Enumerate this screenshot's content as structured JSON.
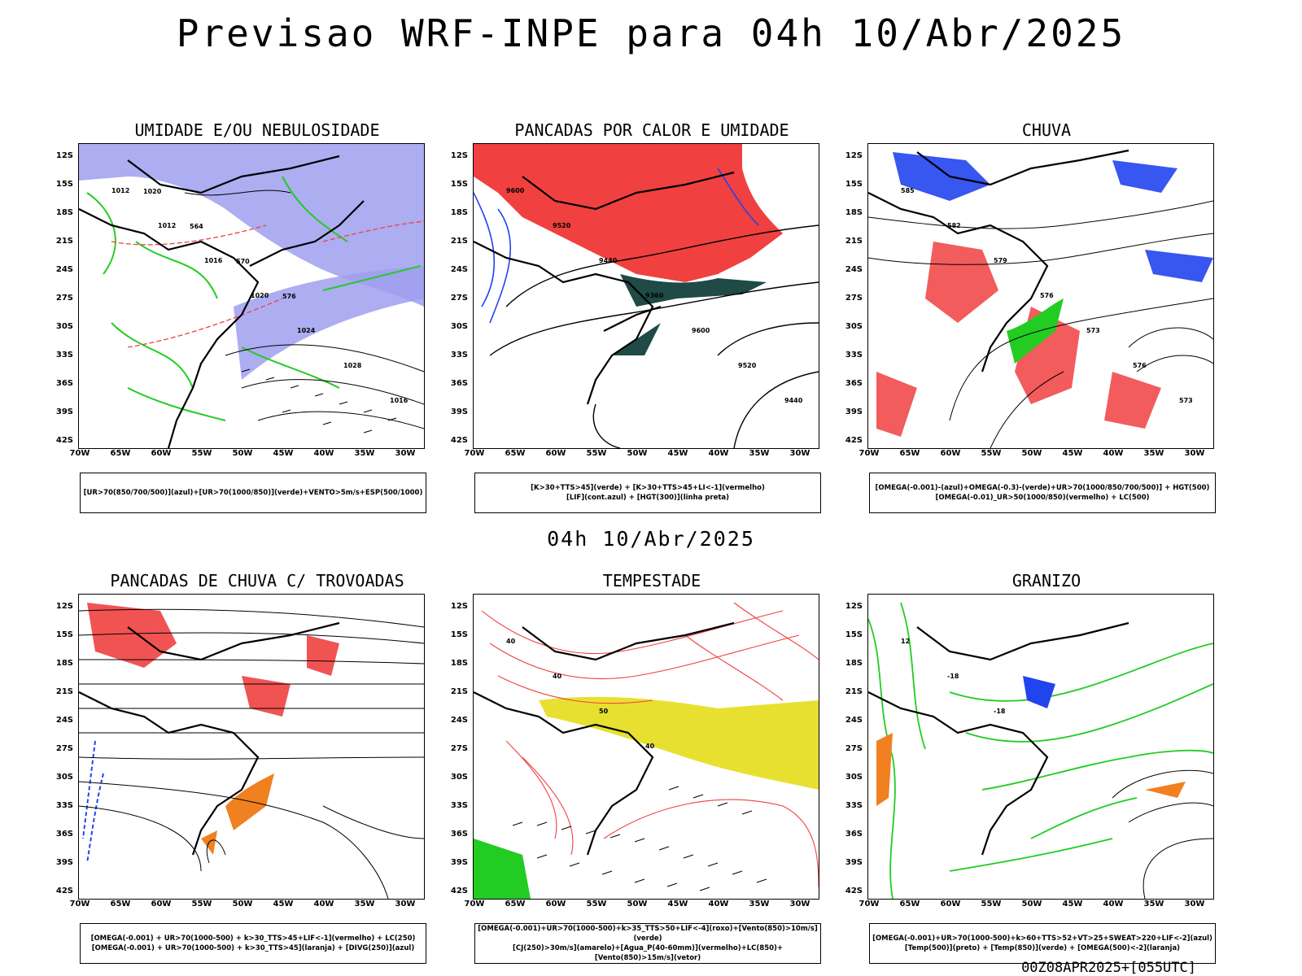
{
  "header": {
    "title": "Previsao WRF-INPE  para 04h 10/Abr/2025",
    "mid_title": "04h 10/Abr/2025",
    "run_info": "00Z08APR2025+[055UTC]"
  },
  "axes": {
    "lat_labels": [
      "12S",
      "15S",
      "18S",
      "21S",
      "24S",
      "27S",
      "30S",
      "33S",
      "36S",
      "39S",
      "42S"
    ],
    "lon_labels": [
      "70W",
      "65W",
      "60W",
      "55W",
      "50W",
      "45W",
      "40W",
      "35W",
      "30W"
    ]
  },
  "colors": {
    "blue_fill": "#9f9ff0",
    "green": "#22cc22",
    "red": "#f04040",
    "dark_teal": "#1f4a46",
    "blue": "#2244ee",
    "orange": "#f08020",
    "yellow": "#e8e030"
  },
  "panels": [
    {
      "title": "UMIDADE E/OU NEBULOSIDADE",
      "legend": [
        "[UR>70(850/700/500)](azul)+[UR>70(1000/850)](verde)+VENTO>5m/s+ESP(500/1000)"
      ],
      "contour_labels": [
        "1012",
        "1012",
        "1016",
        "1020",
        "1024",
        "1028",
        "1016",
        "1020",
        "564",
        "570",
        "576"
      ]
    },
    {
      "title": "PANCADAS POR CALOR E UMIDADE",
      "legend": [
        "[K>30+TTS>45](verde) + [K>30+TTS>45+LI<-1](vermelho)",
        "[LIF](cont.azul) + [HGT(300)](linha preta)"
      ],
      "contour_labels": [
        "9600",
        "9520",
        "9440",
        "9360",
        "9600",
        "9520",
        "9440"
      ]
    },
    {
      "title": "CHUVA",
      "legend": [
        "[OMEGA(-0.001)-(azul)+OMEGA(-0.3)-(verde)+UR>70(1000/850/700/500)] + HGT(500)",
        "[OMEGA(-0.01)_UR>50(1000/850)(vermelho) + LC(500)"
      ],
      "contour_labels": [
        "585",
        "582",
        "579",
        "576",
        "573",
        "576",
        "573"
      ]
    },
    {
      "title": "PANCADAS DE CHUVA C/ TROVOADAS",
      "legend": [
        "[OMEGA(-0.001) + UR>70(1000-500) + k>30_TTS>45+LIF<-1](vermelho) + LC(250)",
        "[OMEGA(-0.001) + UR>70(1000-500) + k>30_TTS>45](laranja) + [DIVG(250)](azul)"
      ],
      "contour_labels": []
    },
    {
      "title": "TEMPESTADE",
      "legend": [
        "[OMEGA(-0.001)+UR>70(1000-500)+k>35_TTS>50+LIF<-4](roxo)+[Vento(850)>10m/s](verde)",
        "[CJ(250)>30m/s](amarelo)+[Agua_P(40-60mm)](vermelho)+LC(850)+[Vento(850)>15m/s](vetor)"
      ],
      "contour_labels": [
        "40",
        "40",
        "50",
        "40"
      ]
    },
    {
      "title": "GRANIZO",
      "legend": [
        "[OMEGA(-0.001)+UR>70(1000-500)+k>60+TTS>52+VT>25+SWEAT>220+LIF<-2](azul)",
        "[Temp(500)](preto) + [Temp(850)](verde) + [OMEGA(500)<-2](laranja)"
      ],
      "contour_labels": [
        "12",
        "-18",
        "-18"
      ]
    }
  ]
}
